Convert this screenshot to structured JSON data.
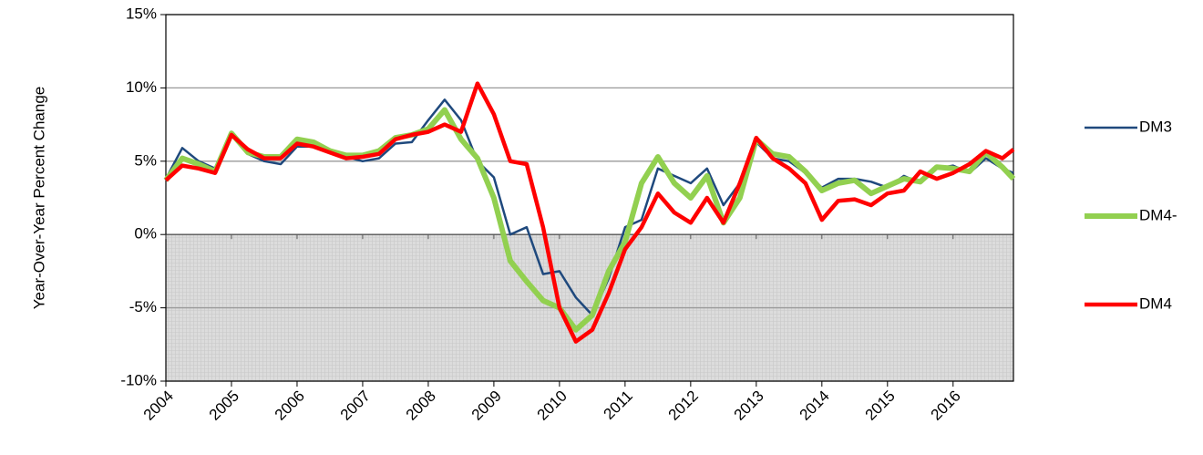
{
  "chart_data": {
    "type": "line",
    "y_label": "Year-Over-Year Percent  Change",
    "x": [
      2004,
      2004.25,
      2004.5,
      2004.75,
      2005,
      2005.25,
      2005.5,
      2005.75,
      2006,
      2006.25,
      2006.5,
      2006.75,
      2007,
      2007.25,
      2007.5,
      2007.75,
      2008,
      2008.25,
      2008.5,
      2008.75,
      2009,
      2009.25,
      2009.5,
      2009.75,
      2010,
      2010.25,
      2010.5,
      2010.75,
      2011,
      2011.25,
      2011.5,
      2011.75,
      2012,
      2012.25,
      2012.5,
      2012.75,
      2013,
      2013.25,
      2013.5,
      2013.75,
      2014,
      2014.25,
      2014.5,
      2014.75,
      2015,
      2015.25,
      2015.5,
      2015.75,
      2016,
      2016.25,
      2016.5,
      2016.75,
      2016.92
    ],
    "xlim": [
      2004,
      2016.92
    ],
    "xticks": [
      2004,
      2005,
      2006,
      2007,
      2008,
      2009,
      2010,
      2011,
      2012,
      2013,
      2014,
      2015,
      2016
    ],
    "ylim": [
      -10,
      15
    ],
    "yticks": [
      {
        "value": -10,
        "label": "-10%"
      },
      {
        "value": -5,
        "label": "-5%"
      },
      {
        "value": 0,
        "label": "0%"
      },
      {
        "value": 5,
        "label": "5%"
      },
      {
        "value": 10,
        "label": "10%"
      },
      {
        "value": 15,
        "label": "15%"
      }
    ],
    "grid": true,
    "legend": "right",
    "series": [
      {
        "name": "DM3",
        "color": "#1f497d",
        "line_width": 2.5,
        "values": [
          3.8,
          5.9,
          5.0,
          4.5,
          7.0,
          5.5,
          5.0,
          4.8,
          6.0,
          6.0,
          5.8,
          5.3,
          5.0,
          5.2,
          6.2,
          6.3,
          7.8,
          9.2,
          7.8,
          5.0,
          3.9,
          0.0,
          0.5,
          -2.7,
          -2.5,
          -4.3,
          -5.5,
          -3.0,
          0.5,
          1.0,
          4.5,
          4.0,
          3.5,
          4.5,
          2.0,
          3.5,
          6.3,
          5.2,
          5.0,
          4.2,
          3.2,
          3.8,
          3.8,
          3.6,
          3.2,
          4.0,
          3.5,
          4.5,
          4.7,
          4.2,
          5.2,
          4.5,
          4.2
        ]
      },
      {
        "name": "DM4-",
        "color": "#92d050",
        "line_width": 6,
        "values": [
          3.7,
          5.2,
          4.8,
          4.3,
          6.9,
          5.6,
          5.3,
          5.3,
          6.5,
          6.3,
          5.7,
          5.4,
          5.4,
          5.7,
          6.6,
          6.8,
          7.2,
          8.5,
          6.5,
          5.2,
          2.5,
          -1.8,
          -3.2,
          -4.5,
          -5.0,
          -6.5,
          -5.5,
          -2.5,
          -0.5,
          3.5,
          5.3,
          3.5,
          2.5,
          4.0,
          0.8,
          2.5,
          6.5,
          5.5,
          5.3,
          4.3,
          3.0,
          3.5,
          3.7,
          2.8,
          3.3,
          3.8,
          3.6,
          4.6,
          4.5,
          4.3,
          5.6,
          4.6,
          3.8
        ]
      },
      {
        "name": "DM4",
        "color": "#ff0000",
        "line_width": 4.5,
        "values": [
          3.7,
          4.7,
          4.5,
          4.2,
          6.8,
          5.8,
          5.2,
          5.2,
          6.2,
          6.0,
          5.6,
          5.2,
          5.3,
          5.5,
          6.5,
          6.8,
          7.0,
          7.5,
          7.0,
          10.3,
          8.2,
          5.0,
          4.8,
          0.5,
          -5.0,
          -7.3,
          -6.5,
          -4.0,
          -1.0,
          0.5,
          2.8,
          1.5,
          0.8,
          2.5,
          0.8,
          3.5,
          6.6,
          5.2,
          4.5,
          3.5,
          1.0,
          2.3,
          2.4,
          2.0,
          2.8,
          3.0,
          4.3,
          3.8,
          4.2,
          4.8,
          5.7,
          5.2,
          5.8
        ]
      }
    ]
  }
}
